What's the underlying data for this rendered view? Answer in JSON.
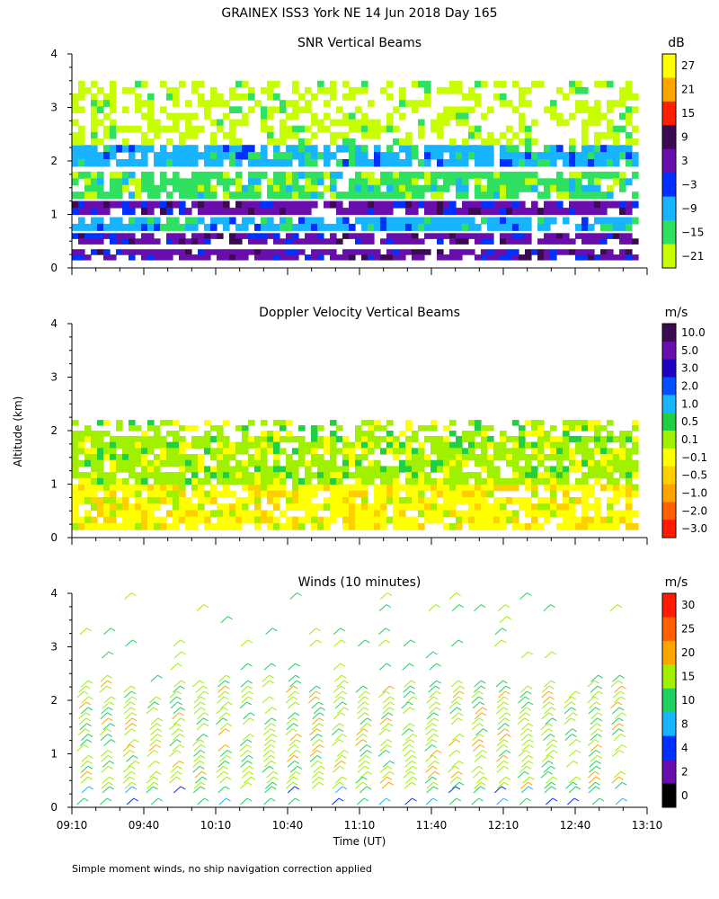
{
  "page_title": "GRAINEX ISS3 York NE  14 Jun 2018 Day 165",
  "shared_y_label": "Altitude (km)",
  "x_axis_label": "Time (UT)",
  "footnote": "Simple moment winds, no ship navigation correction applied",
  "chart_data": [
    {
      "type": "heatmap",
      "title": "SNR Vertical Beams",
      "xlabel": "",
      "ylabel": "Altitude (km)",
      "x_range": [
        "09:10",
        "13:10"
      ],
      "ylim": [
        0,
        4
      ],
      "y_ticks": [
        0,
        1,
        2,
        3,
        4
      ],
      "colorbar": {
        "unit": "dB",
        "labels": [
          "27",
          "21",
          "15",
          "9",
          "3",
          "−3",
          "−9",
          "−15",
          "−21"
        ],
        "colors": [
          "#ffff00",
          "#ffa500",
          "#ff2000",
          "#3c0a50",
          "#6a0dad",
          "#0030ff",
          "#19b4ff",
          "#30e060",
          "#c8ff00"
        ]
      },
      "layers": [
        {
          "alt_range": [
            0.15,
            0.35
          ],
          "level": "3"
        },
        {
          "alt_range": [
            0.45,
            0.65
          ],
          "level": "3"
        },
        {
          "alt_range": [
            0.7,
            0.95
          ],
          "level": "-9"
        },
        {
          "alt_range": [
            1.0,
            1.25
          ],
          "level": "3"
        },
        {
          "alt_range": [
            1.3,
            1.8
          ],
          "level": "-15"
        },
        {
          "alt_range": [
            1.9,
            2.3
          ],
          "level": "-9"
        },
        {
          "alt_range": [
            2.3,
            3.5
          ],
          "level": "-21"
        }
      ]
    },
    {
      "type": "heatmap",
      "title": "Doppler Velocity Vertical Beams",
      "xlabel": "",
      "ylabel": "Altitude (km)",
      "x_range": [
        "09:10",
        "13:10"
      ],
      "ylim": [
        0,
        4
      ],
      "y_ticks": [
        0,
        1,
        2,
        3,
        4
      ],
      "colorbar": {
        "unit": "m/s",
        "labels": [
          "10.0",
          "5.0",
          "3.0",
          "2.0",
          "1.0",
          "0.5",
          "0.1",
          "−0.1",
          "−0.5",
          "−1.0",
          "−2.0",
          "−3.0"
        ],
        "colors": [
          "#3c0a50",
          "#6a0dad",
          "#2000c0",
          "#0050ff",
          "#19b4ff",
          "#20d040",
          "#a0f000",
          "#ffff00",
          "#ffd000",
          "#ffa500",
          "#ff6000",
          "#ff1a00"
        ]
      },
      "layers": [
        {
          "alt_range": [
            0.15,
            1.0
          ],
          "level": "-0.1"
        },
        {
          "alt_range": [
            1.0,
            1.9
          ],
          "level": "0.1"
        },
        {
          "alt_range": [
            1.9,
            2.2
          ],
          "level": "0.1"
        }
      ]
    },
    {
      "type": "scatter",
      "title": "Winds (10 minutes)",
      "xlabel": "Time (UT)",
      "ylabel": "Altitude (km)",
      "x_ticks": [
        "09:10",
        "09:40",
        "10:10",
        "10:40",
        "11:10",
        "11:40",
        "12:10",
        "12:40",
        "13:10"
      ],
      "ylim": [
        0,
        4
      ],
      "y_ticks": [
        0,
        1,
        2,
        3,
        4
      ],
      "marks": "wind barbs",
      "colorbar": {
        "unit": "m/s",
        "labels": [
          "30",
          "25",
          "20",
          "15",
          "10",
          "8",
          "4",
          "2",
          "0"
        ],
        "colors": [
          "#ff1a00",
          "#ff6000",
          "#ffa500",
          "#a0f000",
          "#20d060",
          "#19b4ff",
          "#0030ff",
          "#6a0dad",
          "#000000"
        ]
      },
      "dominant_speed_by_altitude": [
        {
          "alt_range": [
            0.0,
            0.3
          ],
          "speed": 10
        },
        {
          "alt_range": [
            0.3,
            2.3
          ],
          "speed": 17
        },
        {
          "alt_range": [
            2.3,
            4.0
          ],
          "speed": 15
        }
      ]
    }
  ]
}
